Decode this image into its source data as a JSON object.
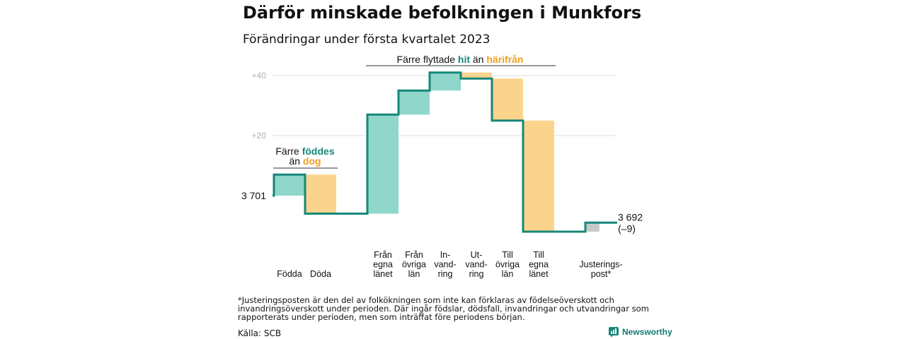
{
  "title": "Därför minskade befolkningen i Munkfors",
  "subtitle": "Förändringar under första kvartalet 2023",
  "footnote": "*Justeringsposten är den del av folkökningen som inte kan förklaras av födelseöverskott och invandringsöverskott under perioden. Där ingår födslar, dödsfall, invandringar och utvandringar som rapporterats under perioden, men som inträffat före periodens början.",
  "source": "Källa: SCB",
  "brand": "Newsworthy",
  "colors": {
    "increase": "#8fd6cb",
    "decrease": "#fad48c",
    "adjustment": "#c8c8c8",
    "line": "#16877a",
    "accent_teal": "#16877a",
    "accent_orange": "#f0a020",
    "grid": "#dcdcdc"
  },
  "annotations": {
    "births_deaths": {
      "line1_pre": "Färre ",
      "line1_hl": "föddes",
      "line2_pre": "än ",
      "line2_hl": "dog"
    },
    "migration": {
      "pre": "Färre flyttade ",
      "hl1": "hit",
      "mid": " än ",
      "hl2": "härifrån"
    }
  },
  "chart_data": {
    "type": "waterfall",
    "title": "Därför minskade befolkningen i Munkfors",
    "subtitle": "Förändringar under första kvartalet 2023",
    "start": {
      "label": "3 701",
      "value": 3701
    },
    "end": {
      "label": "3 692",
      "change_label": "(–9)",
      "value": 3692
    },
    "y_axis_reference": "relative change from start",
    "y_ticks": [
      {
        "value": 20,
        "label": "+20"
      },
      {
        "value": 40,
        "label": "+40"
      }
    ],
    "ylim": [
      -13,
      43
    ],
    "grid": true,
    "categories": [
      {
        "label_lines": [
          "Födda"
        ],
        "from": 0,
        "to": 7,
        "kind": "increase"
      },
      {
        "label_lines": [
          "Döda"
        ],
        "from": 7,
        "to": -6,
        "kind": "decrease"
      },
      {
        "label_lines": [],
        "from": -6,
        "to": -6,
        "kind": "gap"
      },
      {
        "label_lines": [
          "Från",
          "egna",
          "länet"
        ],
        "from": -6,
        "to": 27,
        "kind": "increase"
      },
      {
        "label_lines": [
          "Från",
          "övriga",
          "län"
        ],
        "from": 27,
        "to": 35,
        "kind": "increase"
      },
      {
        "label_lines": [
          "In-",
          "vand-",
          "ring"
        ],
        "from": 35,
        "to": 41,
        "kind": "increase"
      },
      {
        "label_lines": [
          "Ut-",
          "vand-",
          "ring"
        ],
        "from": 41,
        "to": 39,
        "kind": "decrease"
      },
      {
        "label_lines": [
          "Till",
          "övriga",
          "län"
        ],
        "from": 39,
        "to": 25,
        "kind": "decrease"
      },
      {
        "label_lines": [
          "Till",
          "egna",
          "länet"
        ],
        "from": 25,
        "to": -12,
        "kind": "decrease"
      },
      {
        "label_lines": [],
        "from": -12,
        "to": -12,
        "kind": "gap"
      },
      {
        "label_lines": [
          "Justerings-",
          "post*"
        ],
        "from": -12,
        "to": -9,
        "kind": "adjustment"
      }
    ]
  }
}
